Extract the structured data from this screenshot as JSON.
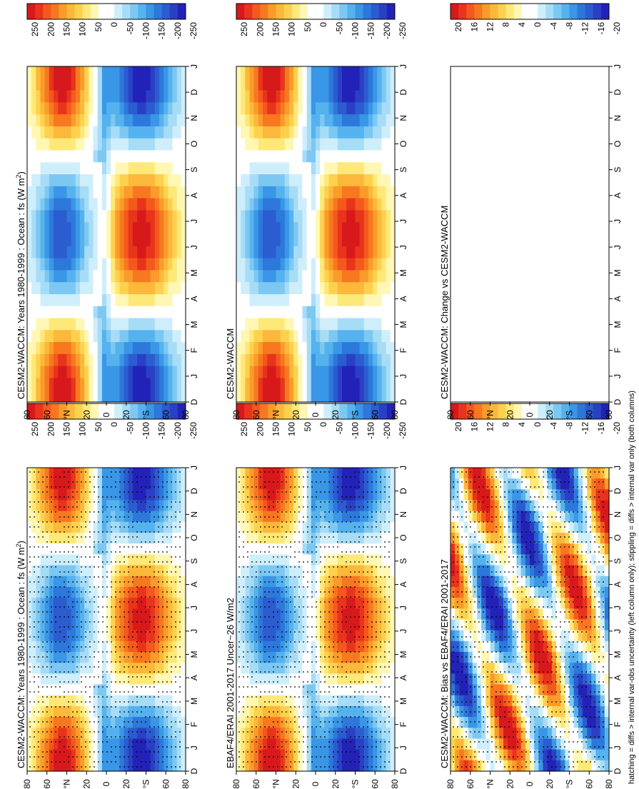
{
  "figure": {
    "footnote": "hatching = diffs > internal var-obs uncertainty (left column only); stippling = diffs > internal var only (both columns)",
    "orientation": "rotated 90 degrees counter-clockwise"
  },
  "chart_data": [
    {
      "id": "model-left",
      "type": "heatmap",
      "title": "CESM2-WACCM: Years 1980-1999 : Ocean : fs (W m",
      "title_units_sup": "2",
      "title_units_close": ")",
      "x_ticks": [
        "D",
        "J",
        "F",
        "M",
        "A",
        "M",
        "J",
        "J",
        "A",
        "S",
        "O",
        "N",
        "D",
        "J"
      ],
      "y_ticks": [
        "80",
        "60",
        "°N",
        "20",
        "0",
        "20",
        "°S",
        "60",
        "80"
      ],
      "colorbar": [
        "250",
        "200",
        "150",
        "100",
        "50",
        "0",
        "-50",
        "-100",
        "-150",
        "-200",
        "-250"
      ],
      "stippled": true
    },
    {
      "id": "model-right",
      "type": "heatmap",
      "title": "CESM2-WACCM: Years 1980-1999 : Ocean : fs (W m",
      "title_units_sup": "2",
      "title_units_close": ")",
      "x_ticks": [
        "D",
        "J",
        "F",
        "M",
        "A",
        "M",
        "J",
        "J",
        "A",
        "S",
        "O",
        "N",
        "D",
        "J"
      ],
      "y_ticks": [
        "80",
        "60",
        "°N",
        "20",
        "0",
        "20",
        "°S",
        "60",
        "80"
      ],
      "colorbar": [
        "250",
        "200",
        "150",
        "100",
        "50",
        "0",
        "-50",
        "-100",
        "-150",
        "-200",
        "-250"
      ],
      "stippled": false
    },
    {
      "id": "obs-left",
      "type": "heatmap",
      "title": "EBAF4/ERAI 2001-2017 Uncer~26 W/m2",
      "x_ticks": [
        "D",
        "J",
        "F",
        "M",
        "A",
        "M",
        "J",
        "J",
        "A",
        "S",
        "O",
        "N",
        "D",
        "J"
      ],
      "y_ticks": [
        "80",
        "60",
        "°N",
        "20",
        "0",
        "20",
        "°S",
        "60",
        "80"
      ],
      "colorbar": [
        "250",
        "200",
        "150",
        "100",
        "50",
        "0",
        "-50",
        "-100",
        "-150",
        "-200",
        "-250"
      ],
      "stippled": true
    },
    {
      "id": "ref-right",
      "type": "heatmap",
      "title": "CESM2-WACCM",
      "x_ticks": [
        "D",
        "J",
        "F",
        "M",
        "A",
        "M",
        "J",
        "J",
        "A",
        "S",
        "O",
        "N",
        "D",
        "J"
      ],
      "y_ticks": [
        "80",
        "60",
        "°N",
        "20",
        "0",
        "20",
        "°S",
        "60",
        "80"
      ],
      "colorbar": [
        "250",
        "200",
        "150",
        "100",
        "50",
        "0",
        "-50",
        "-100",
        "-150",
        "-200",
        "-250"
      ],
      "stippled": false
    },
    {
      "id": "bias-left",
      "type": "heatmap",
      "title": "CESM2-WACCM: Bias vs EBAF4/ERAI 2001-2017",
      "x_ticks": [
        "D",
        "J",
        "F",
        "M",
        "A",
        "M",
        "J",
        "J",
        "A",
        "S",
        "O",
        "N",
        "D",
        "J"
      ],
      "y_ticks": [
        "80",
        "60",
        "°N",
        "20",
        "0",
        "20",
        "°S",
        "60",
        "80"
      ],
      "colorbar": [
        "20",
        "16",
        "12",
        "8",
        "4",
        "0",
        "-4",
        "-8",
        "-12",
        "-16",
        "-20"
      ],
      "stippled": true
    },
    {
      "id": "change-right",
      "type": "heatmap",
      "title": "CESM2-WACCM: Change vs CESM2-WACCM",
      "x_ticks": [
        "D",
        "J",
        "F",
        "M",
        "A",
        "M",
        "J",
        "J",
        "A",
        "S",
        "O",
        "N",
        "D",
        "J"
      ],
      "y_ticks": [
        "80",
        "60",
        "°N",
        "20",
        "0",
        "20",
        "°S",
        "60",
        "80"
      ],
      "colorbar": [
        "20",
        "16",
        "12",
        "8",
        "4",
        "0",
        "-4",
        "-8",
        "-12",
        "-16",
        "-20"
      ],
      "stippled": false,
      "empty": true
    }
  ],
  "colors": {
    "scale": [
      "#d7191c",
      "#e8341c",
      "#f4581d",
      "#f7781f",
      "#fa9b2a",
      "#fbb83a",
      "#fdd14e",
      "#fee877",
      "#fff7b3",
      "#ffffff",
      "#ffffff",
      "#cfeefb",
      "#a7dcf6",
      "#7cc8f2",
      "#55b2ee",
      "#3a96e6",
      "#2d78db",
      "#2b5cd0",
      "#2a40c4",
      "#2322b8"
    ]
  }
}
